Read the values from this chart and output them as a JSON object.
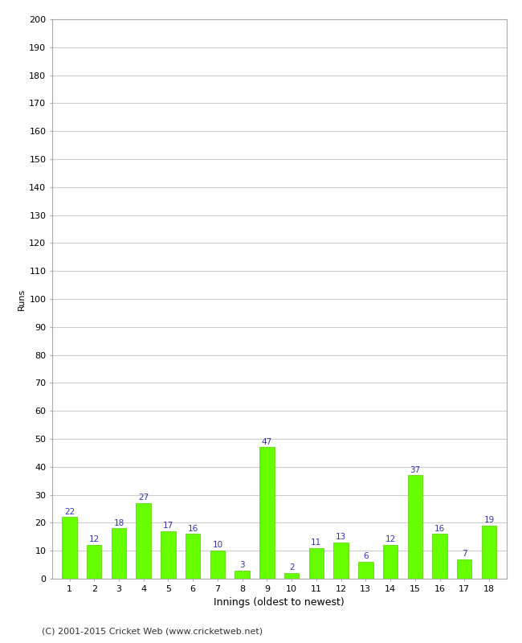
{
  "innings": [
    1,
    2,
    3,
    4,
    5,
    6,
    7,
    8,
    9,
    10,
    11,
    12,
    13,
    14,
    15,
    16,
    17,
    18
  ],
  "runs": [
    22,
    12,
    18,
    27,
    17,
    16,
    10,
    3,
    47,
    2,
    11,
    13,
    6,
    12,
    37,
    16,
    7,
    19
  ],
  "bar_color": "#66ff00",
  "bar_edge_color": "#55cc00",
  "label_color": "#3333aa",
  "xlabel": "Innings (oldest to newest)",
  "ylabel": "Runs",
  "ylim": [
    0,
    200
  ],
  "ytick_step": 10,
  "background_color": "#ffffff",
  "grid_color": "#cccccc",
  "footer": "(C) 2001-2015 Cricket Web (www.cricketweb.net)",
  "border_color": "#aaaaaa"
}
